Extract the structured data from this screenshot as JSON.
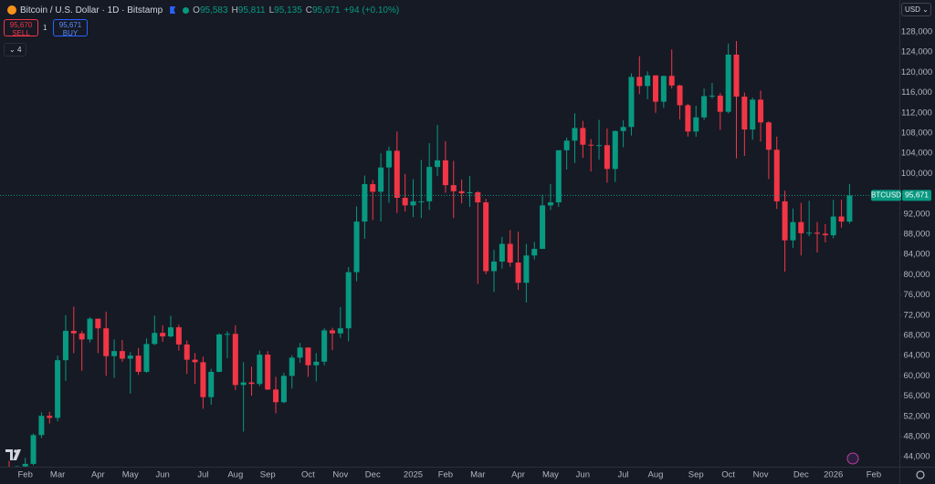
{
  "chart_data": {
    "type": "candlestick",
    "title": "Bitcoin / U.S. Dollar · 1D · Bitstamp",
    "ohlc": [
      {
        "label": "O",
        "value": "95,583"
      },
      {
        "label": "H",
        "value": "95,811"
      },
      {
        "label": "L",
        "value": "95,135"
      },
      {
        "label": "C",
        "value": "95,671"
      }
    ],
    "change": "+94 (+0.10%)",
    "trade": {
      "sell_price": "95,670",
      "sell_label": "SELL",
      "quantity": "1",
      "buy_price": "95,671",
      "buy_label": "BUY"
    },
    "indicators_count": "4",
    "currency": "USD",
    "symbol": "BTCUSD",
    "last_price": {
      "value": 95671,
      "label": "95,671"
    },
    "up_color": "#089981",
    "down_color": "#f23645",
    "ylim": [
      42050,
      134300
    ],
    "yticks": [
      {
        "value": 44000,
        "label": "44,000"
      },
      {
        "value": 48000,
        "label": "48,000"
      },
      {
        "value": 52000,
        "label": "52,000"
      },
      {
        "value": 56000,
        "label": "56,000"
      },
      {
        "value": 60000,
        "label": "60,000"
      },
      {
        "value": 64000,
        "label": "64,000"
      },
      {
        "value": 68000,
        "label": "68,000"
      },
      {
        "value": 72000,
        "label": "72,000"
      },
      {
        "value": 76000,
        "label": "76,000"
      },
      {
        "value": 80000,
        "label": "80,000"
      },
      {
        "value": 84000,
        "label": "84,000"
      },
      {
        "value": 88000,
        "label": "88,000"
      },
      {
        "value": 92000,
        "label": "92,000"
      },
      {
        "value": 96000,
        "label": "96,000"
      },
      {
        "value": 100000,
        "label": "100,000"
      },
      {
        "value": 104000,
        "label": "104,000"
      },
      {
        "value": 108000,
        "label": "108,000"
      },
      {
        "value": 112000,
        "label": "112,000"
      },
      {
        "value": 116000,
        "label": "116,000"
      },
      {
        "value": 120000,
        "label": "120,000"
      },
      {
        "value": 124000,
        "label": "124,000"
      },
      {
        "value": 128000,
        "label": "128,000"
      }
    ],
    "categories": [
      null,
      null,
      "Feb",
      null,
      null,
      null,
      "Mar",
      null,
      null,
      null,
      null,
      "Apr",
      null,
      null,
      null,
      "May",
      null,
      null,
      null,
      "Jun",
      null,
      null,
      null,
      null,
      "Jul",
      null,
      null,
      null,
      "Aug",
      null,
      null,
      null,
      "Sep",
      null,
      null,
      null,
      null,
      "Oct",
      null,
      null,
      null,
      "Nov",
      null,
      null,
      null,
      "Dec",
      null,
      null,
      null,
      null,
      "2025",
      null,
      null,
      null,
      "Feb",
      null,
      null,
      null,
      "Mar",
      null,
      null,
      null,
      null,
      "Apr",
      null,
      null,
      null,
      "May",
      null,
      null,
      null,
      "Jun",
      null,
      null,
      null,
      null,
      "Jul",
      null,
      null,
      null,
      "Aug",
      null,
      null,
      null,
      null,
      "Sep",
      null,
      null,
      null,
      "Oct",
      null,
      null,
      null,
      "Nov",
      null,
      null,
      null,
      null,
      "Dec",
      null,
      null,
      null,
      "2026",
      null,
      null,
      null,
      null,
      "Feb"
    ],
    "open": [
      41700,
      41600,
      42100,
      42600,
      48300,
      52100,
      51700,
      63100,
      68900,
      68400,
      67200,
      71300,
      69400,
      63900,
      64900,
      63400,
      64000,
      60800,
      66300,
      68500,
      67800,
      69600,
      66200,
      63200,
      62700,
      55800,
      60800,
      68200,
      68300,
      58200,
      58700,
      58400,
      64200,
      57300,
      54800,
      60000,
      63600,
      65600,
      62100,
      62800,
      69000,
      68400,
      69400,
      80500,
      90500,
      97900,
      96400,
      101200,
      104500,
      95200,
      93700,
      94500,
      94500,
      101300,
      102600,
      97700,
      96500,
      96100,
      96300,
      94300,
      80700,
      82600,
      86100,
      82400,
      78400,
      83800,
      85100,
      93700,
      94300,
      104600,
      106500,
      109000,
      105700,
      105600,
      105600,
      100900,
      108400,
      109200,
      119100,
      117300,
      119400,
      114200,
      119300,
      117400,
      113500,
      108300,
      111100,
      115300,
      115400,
      112200,
      123500,
      115200,
      108700,
      114600,
      110100,
      104700,
      94500,
      86800,
      90400,
      88200,
      88300,
      88100,
      87800,
      91500,
      90500,
      null,
      null,
      null
    ],
    "high": [
      43200,
      42200,
      43800,
      48600,
      52800,
      52900,
      64000,
      72000,
      73700,
      68900,
      71600,
      71300,
      72700,
      67200,
      67100,
      64700,
      65500,
      67400,
      71900,
      70000,
      71900,
      70100,
      67000,
      64500,
      63800,
      61400,
      68400,
      68800,
      70000,
      62700,
      61800,
      65000,
      64900,
      59800,
      60600,
      64100,
      66500,
      65600,
      64500,
      69400,
      69500,
      73600,
      81500,
      93500,
      99600,
      98700,
      104000,
      105300,
      108300,
      99900,
      98900,
      102700,
      106000,
      109600,
      106400,
      102500,
      98800,
      99500,
      96500,
      95000,
      84900,
      87500,
      88800,
      88500,
      86100,
      86500,
      95800,
      97900,
      104600,
      107100,
      111900,
      110400,
      106800,
      110600,
      108900,
      108500,
      110500,
      119800,
      123200,
      120200,
      119400,
      119300,
      124500,
      117600,
      113800,
      113400,
      116800,
      117900,
      115900,
      125700,
      126200,
      116000,
      115000,
      116400,
      110300,
      107300,
      96600,
      93100,
      94200,
      94600,
      90400,
      90000,
      94800,
      94800,
      97900,
      null,
      null,
      null
    ],
    "low": [
      40600,
      38500,
      41800,
      42300,
      47700,
      50600,
      51000,
      59000,
      64500,
      61000,
      66600,
      64500,
      60000,
      59600,
      62800,
      56500,
      60200,
      60600,
      66100,
      66700,
      67600,
      65000,
      60400,
      58400,
      53500,
      54300,
      60700,
      63500,
      57200,
      49000,
      56100,
      58000,
      57200,
      52600,
      54600,
      57500,
      62600,
      59800,
      58900,
      62100,
      65100,
      67500,
      66800,
      78700,
      87100,
      90800,
      90500,
      94200,
      92200,
      92500,
      91400,
      91200,
      92800,
      99500,
      96200,
      91200,
      94100,
      93400,
      78200,
      80100,
      76600,
      81200,
      81600,
      77000,
      74500,
      83000,
      85100,
      92800,
      93400,
      100800,
      102100,
      103100,
      100400,
      102700,
      98200,
      98300,
      105200,
      107500,
      115700,
      114700,
      112000,
      113000,
      116800,
      110700,
      107300,
      107300,
      110600,
      114800,
      108600,
      111900,
      103000,
      103500,
      106700,
      106300,
      98900,
      93000,
      80600,
      85300,
      83800,
      87600,
      84400,
      86400,
      87200,
      89300,
      90100,
      null,
      null,
      null
    ],
    "close": [
      41600,
      42100,
      42600,
      48300,
      52100,
      51700,
      63100,
      68900,
      68400,
      67200,
      71300,
      69400,
      63900,
      64900,
      63400,
      64000,
      60800,
      66300,
      68500,
      67800,
      69600,
      66200,
      63200,
      62700,
      55800,
      60800,
      68200,
      68300,
      58200,
      58700,
      58400,
      64200,
      57300,
      54800,
      60000,
      63600,
      65600,
      62100,
      62800,
      69000,
      68400,
      69400,
      80500,
      90500,
      97900,
      96400,
      101200,
      104500,
      95200,
      93700,
      94500,
      94500,
      101300,
      102600,
      97700,
      96500,
      96100,
      96300,
      94300,
      80700,
      82600,
      86100,
      82400,
      78400,
      83800,
      85100,
      93700,
      94300,
      104600,
      106500,
      109000,
      105700,
      105600,
      105600,
      100900,
      108400,
      109200,
      119100,
      117300,
      119400,
      114200,
      119300,
      117400,
      113500,
      108300,
      111100,
      115300,
      115400,
      112200,
      123500,
      115200,
      108700,
      114600,
      110100,
      104700,
      94500,
      86800,
      90400,
      88200,
      88300,
      88100,
      87800,
      91500,
      90500,
      95671,
      null,
      null,
      null
    ]
  }
}
